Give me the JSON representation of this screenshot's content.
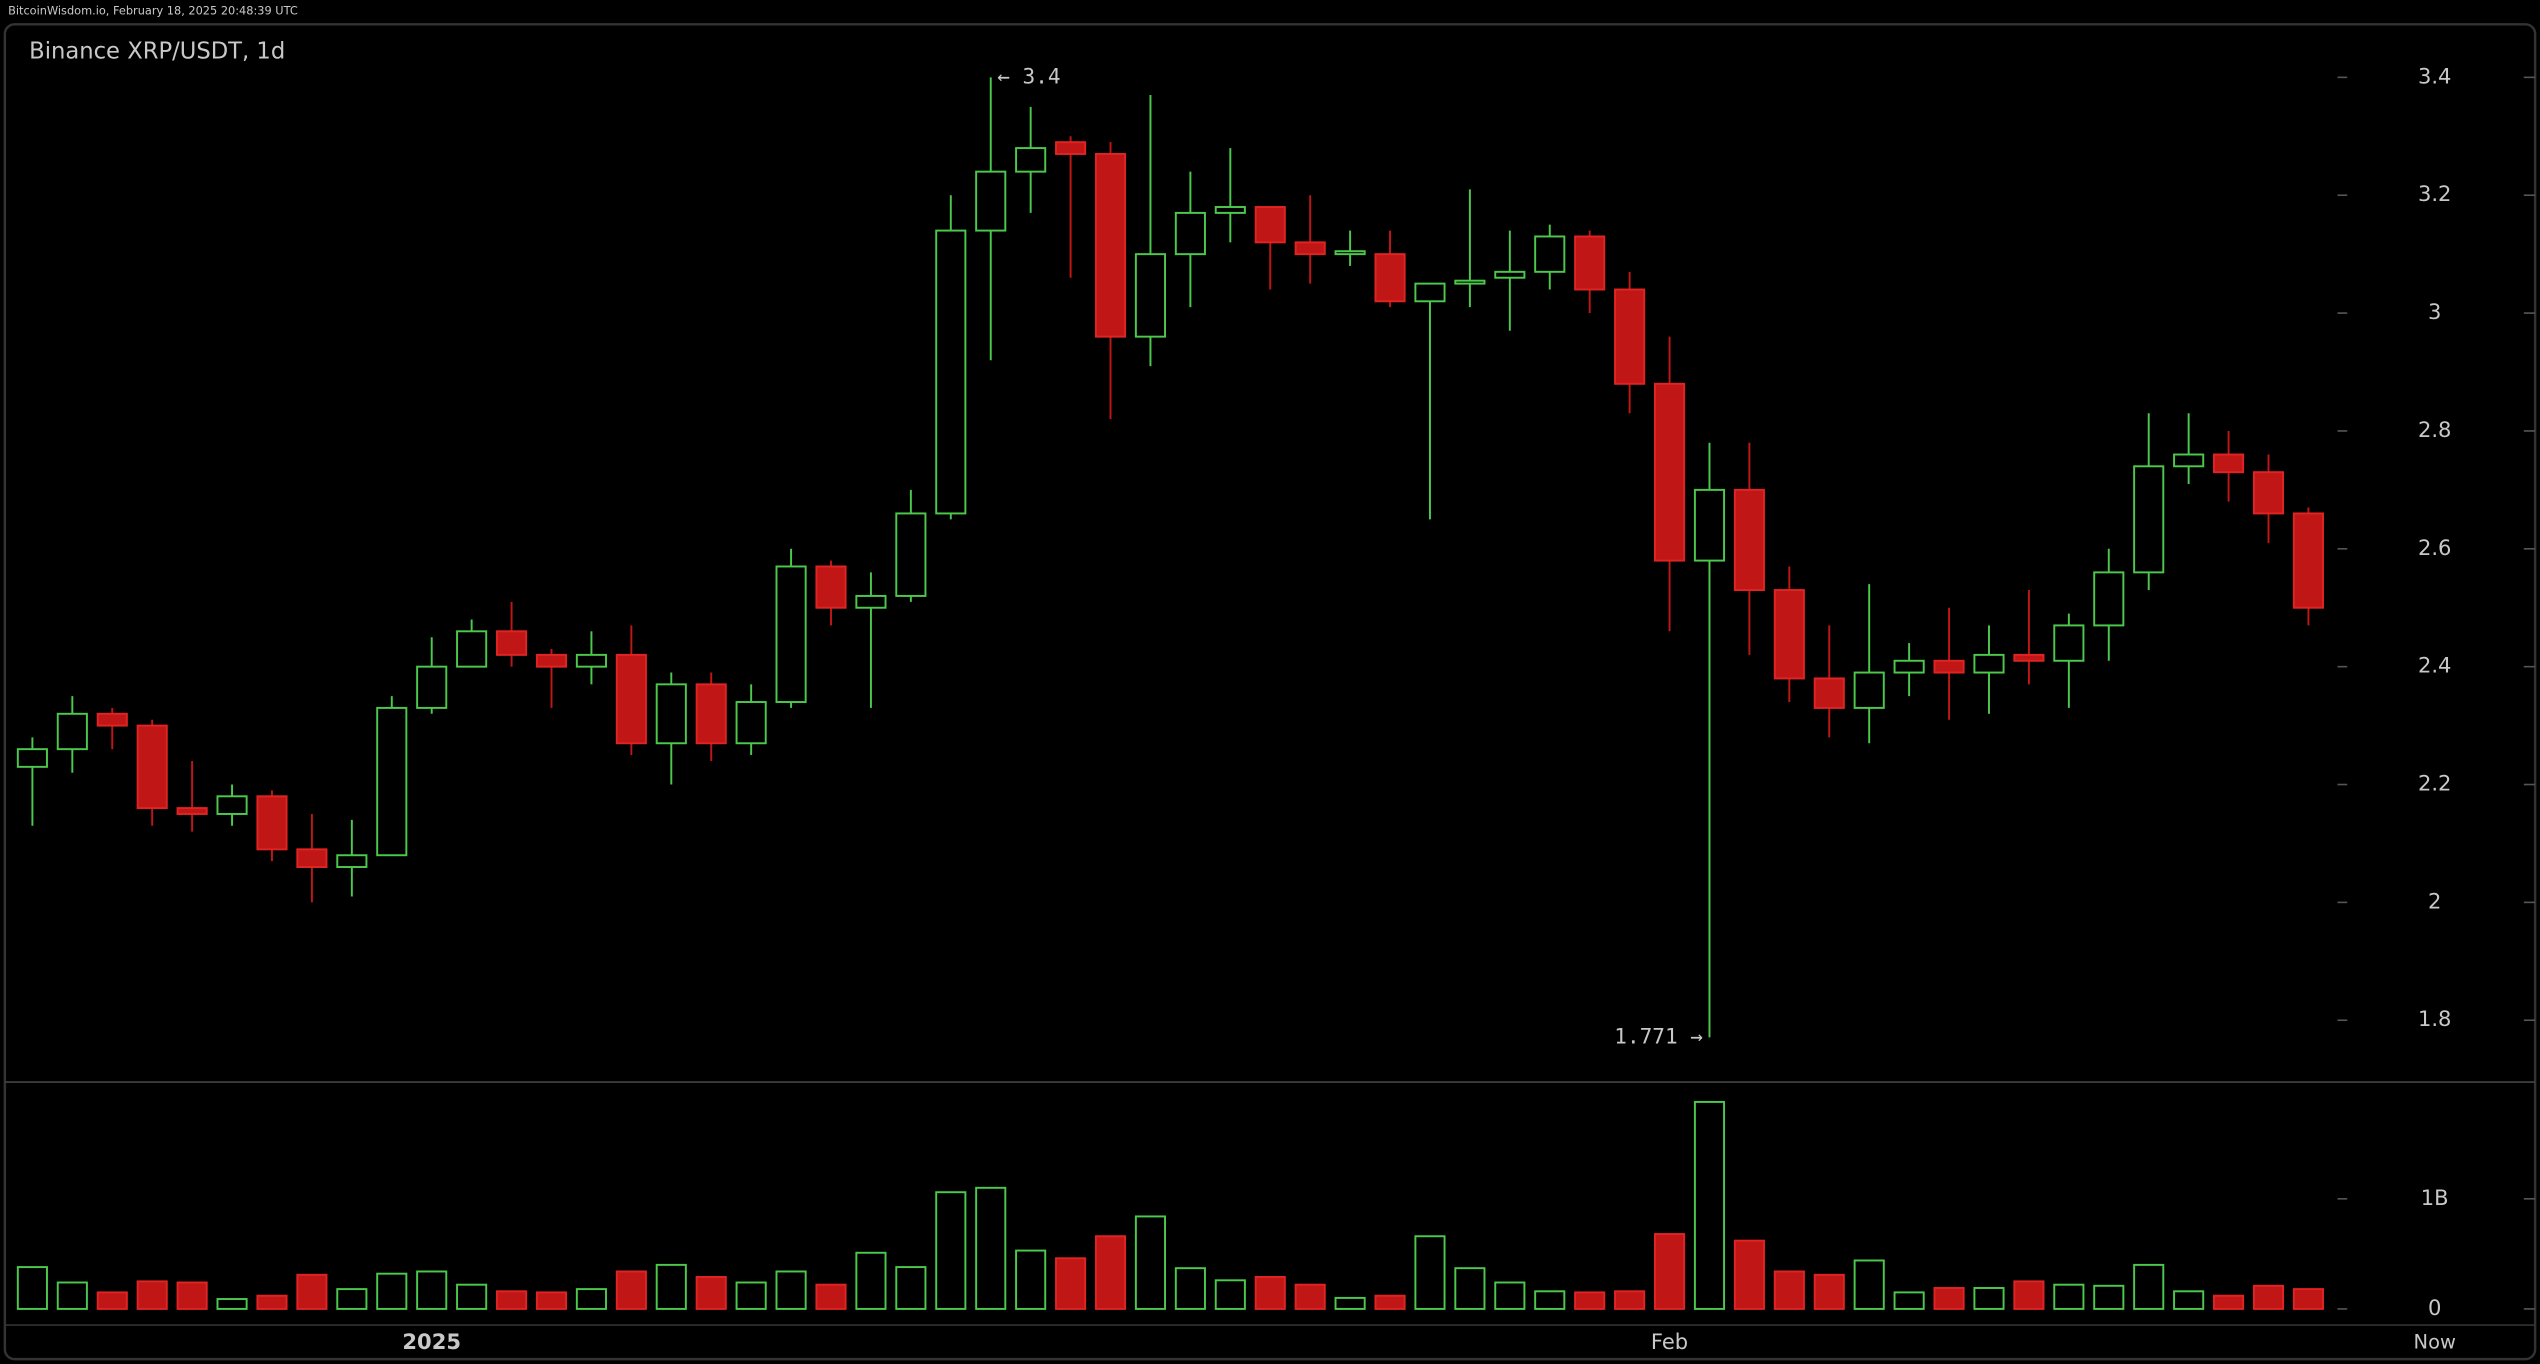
{
  "chart_data": {
    "type": "candlestick",
    "source": "BitcoinWisdom.io, February 18, 2025 20:48:39 UTC",
    "title": "Binance XRP/USDT, 1d",
    "categories": [
      null,
      null,
      null,
      null,
      null,
      null,
      null,
      null,
      null,
      null,
      "2025",
      null,
      null,
      null,
      null,
      null,
      null,
      null,
      null,
      null,
      null,
      null,
      null,
      null,
      null,
      null,
      null,
      null,
      null,
      null,
      null,
      null,
      null,
      null,
      null,
      null,
      null,
      null,
      null,
      null,
      null,
      "Feb",
      null,
      null,
      null,
      null,
      null,
      null,
      null,
      null,
      null,
      null,
      null,
      null,
      null,
      null,
      null,
      null
    ],
    "now_label": "Now",
    "open": [
      2.23,
      2.26,
      2.32,
      2.3,
      2.16,
      2.15,
      2.18,
      2.09,
      2.06,
      2.08,
      2.33,
      2.4,
      2.46,
      2.42,
      2.4,
      2.42,
      2.27,
      2.37,
      2.27,
      2.34,
      2.57,
      2.5,
      2.52,
      2.66,
      3.14,
      3.24,
      3.29,
      3.27,
      2.96,
      3.1,
      3.17,
      3.18,
      3.12,
      3.1,
      3.1,
      3.02,
      3.05,
      3.06,
      3.07,
      3.13,
      3.04,
      2.88,
      2.58,
      2.7,
      2.53,
      2.38,
      2.33,
      2.39,
      2.41,
      2.39,
      2.42,
      2.41,
      2.47,
      2.56,
      2.74,
      2.76,
      2.73,
      2.66
    ],
    "high": [
      2.28,
      2.35,
      2.33,
      2.31,
      2.24,
      2.2,
      2.19,
      2.15,
      2.14,
      2.35,
      2.45,
      2.48,
      2.51,
      2.43,
      2.46,
      2.47,
      2.39,
      2.39,
      2.37,
      2.6,
      2.58,
      2.56,
      2.7,
      3.2,
      3.4,
      3.35,
      3.3,
      3.29,
      3.37,
      3.24,
      3.28,
      3.18,
      3.2,
      3.14,
      3.14,
      3.05,
      3.21,
      3.14,
      3.15,
      3.14,
      3.07,
      2.96,
      2.78,
      2.78,
      2.57,
      2.47,
      2.54,
      2.44,
      2.5,
      2.47,
      2.53,
      2.49,
      2.6,
      2.83,
      2.83,
      2.8,
      2.76,
      2.67
    ],
    "low": [
      2.13,
      2.22,
      2.26,
      2.13,
      2.12,
      2.13,
      2.07,
      2.0,
      2.01,
      2.08,
      2.32,
      2.4,
      2.4,
      2.33,
      2.37,
      2.25,
      2.2,
      2.24,
      2.25,
      2.33,
      2.47,
      2.33,
      2.51,
      2.65,
      2.92,
      3.17,
      3.06,
      2.82,
      2.91,
      3.01,
      3.12,
      3.04,
      3.05,
      3.08,
      3.01,
      2.65,
      3.01,
      2.97,
      3.04,
      3.0,
      2.83,
      2.46,
      1.771,
      2.42,
      2.34,
      2.28,
      2.27,
      2.35,
      2.31,
      2.32,
      2.37,
      2.33,
      2.41,
      2.53,
      2.71,
      2.68,
      2.61,
      2.47
    ],
    "close": [
      2.26,
      2.32,
      2.3,
      2.16,
      2.15,
      2.18,
      2.09,
      2.06,
      2.08,
      2.33,
      2.4,
      2.46,
      2.42,
      2.4,
      2.42,
      2.27,
      2.37,
      2.27,
      2.34,
      2.57,
      2.5,
      2.52,
      2.66,
      3.14,
      3.24,
      3.28,
      3.27,
      2.96,
      3.1,
      3.17,
      3.18,
      3.12,
      3.1,
      3.105,
      3.02,
      3.05,
      3.055,
      3.07,
      3.13,
      3.04,
      2.88,
      2.58,
      2.7,
      2.53,
      2.38,
      2.33,
      2.39,
      2.41,
      2.39,
      2.42,
      2.41,
      2.47,
      2.56,
      2.74,
      2.76,
      2.73,
      2.66,
      2.5
    ],
    "volume": [
      380000000,
      240000000,
      150000000,
      250000000,
      240000000,
      90000000,
      120000000,
      310000000,
      180000000,
      320000000,
      340000000,
      220000000,
      160000000,
      150000000,
      180000000,
      340000000,
      400000000,
      290000000,
      240000000,
      340000000,
      220000000,
      510000000,
      380000000,
      1060000000,
      1100000000,
      530000000,
      460000000,
      660000000,
      840000000,
      370000000,
      260000000,
      290000000,
      220000000,
      100000000,
      120000000,
      660000000,
      370000000,
      240000000,
      160000000,
      150000000,
      160000000,
      680000000,
      1880000000,
      620000000,
      340000000,
      310000000,
      440000000,
      150000000,
      190000000,
      190000000,
      250000000,
      220000000,
      210000000,
      400000000,
      160000000,
      120000000,
      210000000,
      180000000
    ],
    "up_color": "#4cc94c",
    "down_color": "#c01616",
    "down_stroke": "#e02424",
    "ylim": [
      1.695,
      3.49
    ],
    "yticks": [
      1.8,
      2,
      2.2,
      2.4,
      2.6,
      2.8,
      3,
      3.2,
      3.4
    ],
    "volume_ylim": [
      -147000000,
      2060000000
    ],
    "volume_yticks": [
      0,
      {
        "value": 1000000000,
        "label": "1B"
      }
    ],
    "annotations": {
      "high_label": "← 3.4",
      "low_label": "1.771 →"
    }
  }
}
